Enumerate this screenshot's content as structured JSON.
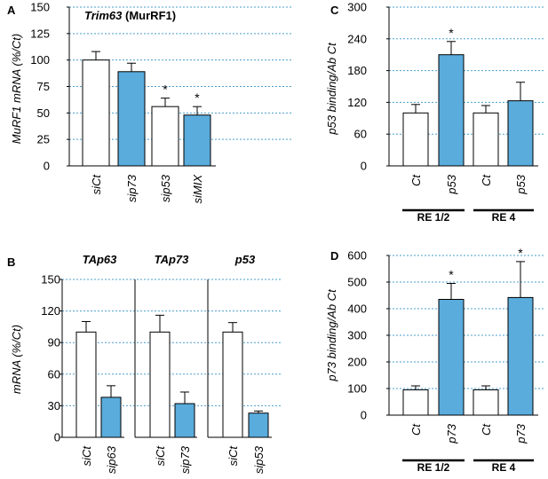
{
  "colors": {
    "filled": "#5aacdc",
    "empty": "#ffffff",
    "grid": "#4a9fd0"
  },
  "chart_data": [
    {
      "id": "A",
      "type": "bar",
      "letter": "A",
      "title_italic": "Trim63",
      "title_rest": " (MurRF1)",
      "ylabel": "MuRF1 mRNA (%/Ct)",
      "ylim": [
        0,
        150
      ],
      "yticks": [
        0,
        25,
        50,
        75,
        100,
        125,
        150
      ],
      "categories": [
        "siCt",
        "sip73",
        "sip53",
        "siMIX"
      ],
      "values": [
        100,
        89,
        56,
        48
      ],
      "errors": [
        8,
        8,
        8,
        8
      ],
      "filled": [
        false,
        true,
        false,
        true
      ],
      "stars": [
        false,
        false,
        true,
        true
      ]
    },
    {
      "id": "B",
      "type": "bar",
      "letter": "B",
      "ylabel": "mRNA (%/Ct)",
      "ylim": [
        0,
        150
      ],
      "yticks": [
        0,
        30,
        60,
        90,
        120,
        150
      ],
      "subpanels": [
        {
          "title": "TAp63",
          "categories": [
            "siCt",
            "sip63"
          ],
          "values": [
            100,
            38
          ],
          "errors": [
            10,
            11
          ]
        },
        {
          "title": "TAp73",
          "categories": [
            "siCt",
            "sip73"
          ],
          "values": [
            100,
            32
          ],
          "errors": [
            16,
            11
          ]
        },
        {
          "title": "p53",
          "categories": [
            "siCt",
            "sip53"
          ],
          "values": [
            100,
            23
          ],
          "errors": [
            9,
            2
          ]
        }
      ]
    },
    {
      "id": "C",
      "type": "bar",
      "letter": "C",
      "ylabel": "p53 binding/Ab Ct",
      "ylim": [
        0,
        300
      ],
      "yticks": [
        0,
        60,
        120,
        180,
        240,
        300
      ],
      "categories": [
        "Ct",
        "p53",
        "Ct",
        "p53"
      ],
      "values": [
        100,
        210,
        100,
        123
      ],
      "errors": [
        16,
        25,
        14,
        35
      ],
      "filled": [
        false,
        true,
        false,
        true
      ],
      "stars": [
        false,
        true,
        false,
        false
      ],
      "groups": [
        "RE 1/2",
        "RE 4"
      ]
    },
    {
      "id": "D",
      "type": "bar",
      "letter": "D",
      "ylabel": "p73 binding/Ab Ct",
      "ylim": [
        0,
        600
      ],
      "yticks": [
        0,
        100,
        200,
        300,
        400,
        500,
        600
      ],
      "categories": [
        "Ct",
        "p73",
        "Ct",
        "p73"
      ],
      "values": [
        95,
        435,
        95,
        442
      ],
      "errors": [
        15,
        60,
        15,
        135
      ],
      "filled": [
        false,
        true,
        false,
        true
      ],
      "stars": [
        false,
        true,
        false,
        true
      ],
      "groups": [
        "RE 1/2",
        "RE 4"
      ]
    }
  ],
  "star_symbol": "*"
}
